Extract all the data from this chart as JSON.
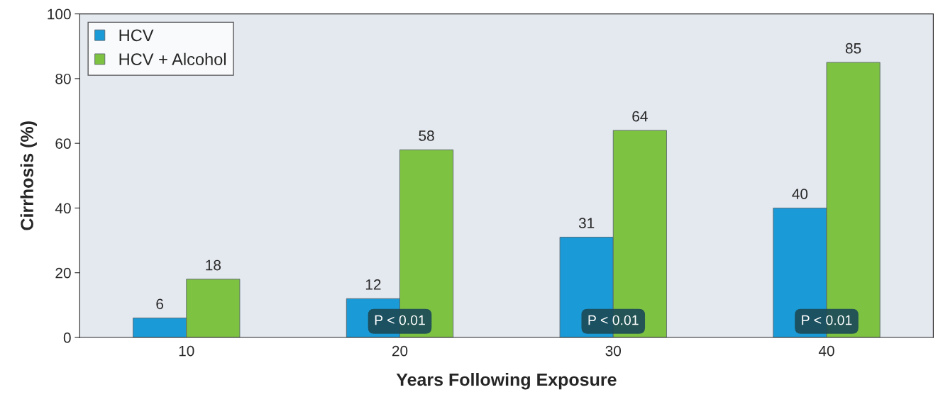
{
  "chart_data": {
    "type": "bar",
    "xlabel": "Years Following Exposure",
    "ylabel": "Cirrhosis (%)",
    "categories": [
      "10",
      "20",
      "30",
      "40"
    ],
    "series": [
      {
        "name": "HCV",
        "color": "#1a9bd7",
        "values": [
          6,
          12,
          31,
          40
        ]
      },
      {
        "name": "HCV + Alcohol",
        "color": "#7ec242",
        "values": [
          18,
          58,
          64,
          85
        ]
      }
    ],
    "ylim": [
      0,
      100
    ],
    "yticks": [
      0,
      20,
      40,
      60,
      80,
      100
    ],
    "grid": false,
    "legend": "top left",
    "data_labels": true,
    "annotations": [
      {
        "text": "P < 0.01",
        "x": "20",
        "y": 5
      },
      {
        "text": "P < 0.01",
        "x": "30",
        "y": 5
      },
      {
        "text": "P < 0.01",
        "x": "40",
        "y": 5
      }
    ]
  }
}
